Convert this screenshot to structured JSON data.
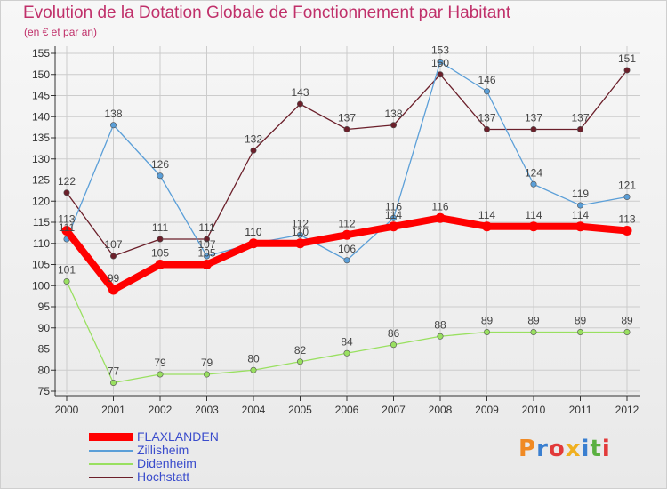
{
  "chart_data": {
    "type": "line",
    "title": "Evolution de la Dotation Globale de Fonctionnement par Habitant",
    "subtitle": "(en € et par an)",
    "xlabel": "",
    "ylabel": "",
    "ylim": [
      75,
      155
    ],
    "yticks": [
      "75",
      "80",
      "85",
      "90",
      "95",
      "100",
      "105",
      "110",
      "115",
      "120",
      "125",
      "130",
      "135",
      "140",
      "145",
      "150",
      "155"
    ],
    "categories": [
      "2000",
      "2001",
      "2002",
      "2003",
      "2004",
      "2005",
      "2006",
      "2007",
      "2008",
      "2009",
      "2010",
      "2011",
      "2012"
    ],
    "series": [
      {
        "name": "Hochstatt",
        "color": "#6b1f2a",
        "values": [
          122,
          107,
          111,
          111,
          132,
          143,
          137,
          138,
          150,
          137,
          137,
          137,
          151
        ],
        "labels": [
          "122",
          "107",
          "111",
          "111",
          "132",
          "143",
          "137",
          "138",
          "150",
          "137",
          "137",
          "137",
          "151"
        ]
      },
      {
        "name": "Didenheim",
        "color": "#99e060",
        "values": [
          101,
          77,
          79,
          79,
          80,
          82,
          84,
          86,
          88,
          89,
          89,
          89,
          89
        ],
        "labels": [
          "101",
          "77",
          "79",
          "79",
          "80",
          "82",
          "84",
          "86",
          "88",
          "89",
          "89",
          "89",
          "89"
        ]
      },
      {
        "name": "Zillisheim",
        "color": "#5b9fd8",
        "values": [
          111,
          138,
          126,
          107,
          110,
          112,
          106,
          116,
          153,
          146,
          124,
          119,
          121
        ],
        "labels": [
          "111",
          "138",
          "126",
          "107",
          "110",
          "112",
          "106",
          "116",
          "153",
          "146",
          "124",
          "119",
          "121"
        ]
      },
      {
        "name": "FLAXLANDEN",
        "color": "#ff0000",
        "values": [
          113,
          99,
          105,
          105,
          110,
          110,
          112,
          114,
          116,
          114,
          114,
          114,
          113
        ],
        "labels": [
          "113",
          "99",
          "105",
          "105",
          "110",
          "110",
          "112",
          "114",
          "116",
          "114",
          "114",
          "114",
          "113"
        ]
      }
    ],
    "legend": {
      "position": "bottom-left",
      "items": [
        {
          "name": "FLAXLANDEN",
          "color": "#ff0000"
        },
        {
          "name": "Zillisheim",
          "color": "#5b9fd8"
        },
        {
          "name": "Didenheim",
          "color": "#99e060"
        },
        {
          "name": "Hochstatt",
          "color": "#6b1f2a"
        }
      ]
    },
    "grid": true
  },
  "logo": {
    "text": "Proxiti",
    "letters": [
      {
        "char": "P",
        "color": "#f08a24"
      },
      {
        "char": "r",
        "color": "#3a7fd0"
      },
      {
        "char": "o",
        "color": "#e23a3a"
      },
      {
        "char": "x",
        "color": "#f0b020"
      },
      {
        "char": "i",
        "color": "#3a7fd0"
      },
      {
        "char": "t",
        "color": "#5ab040"
      },
      {
        "char": "i",
        "color": "#e23a3a"
      }
    ]
  }
}
